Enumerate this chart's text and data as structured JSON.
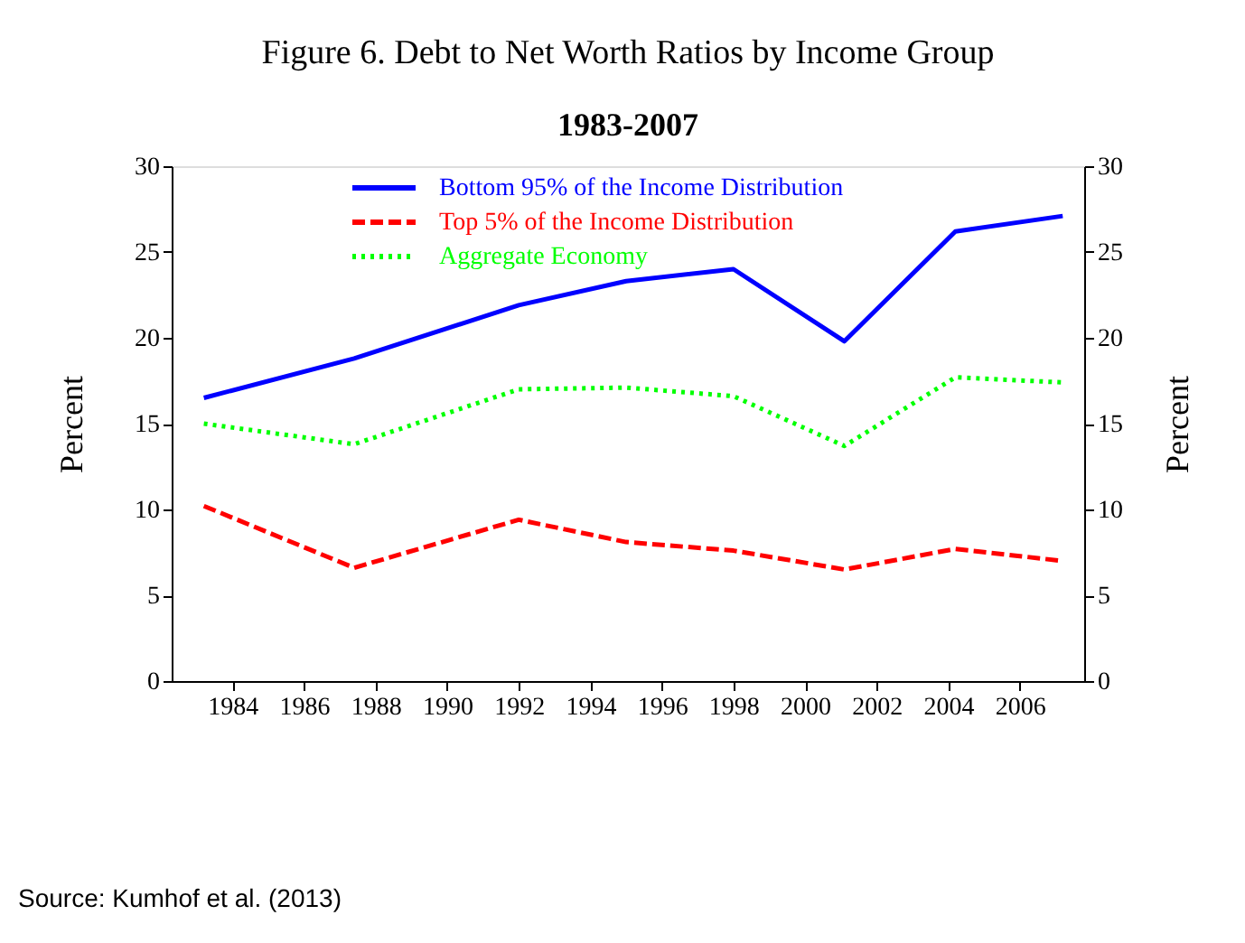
{
  "chart_data": {
    "type": "line",
    "title": "Figure 6. Debt to Net Worth Ratios by Income Group",
    "subtitle": "1983-2007",
    "ylabel": "Percent",
    "y2label": "Percent",
    "x": [
      1983.2,
      1987.4,
      1992,
      1995,
      1998,
      2001.1,
      2004.2,
      2007.2
    ],
    "series": [
      {
        "name": "Bottom 95% of the Income Distribution",
        "color": "#0000ff",
        "line_style": "solid",
        "values": [
          16.5,
          18.8,
          21.9,
          23.3,
          24.0,
          19.8,
          26.2,
          27.1
        ]
      },
      {
        "name": "Top 5% of the Income Distribution",
        "color": "#ff0000",
        "line_style": "dashed",
        "values": [
          10.2,
          6.6,
          9.4,
          8.1,
          7.6,
          6.5,
          7.7,
          7.0
        ]
      },
      {
        "name": "Aggregate Economy",
        "color": "#00ff00",
        "line_style": "dotted",
        "values": [
          15.0,
          13.8,
          17.0,
          17.1,
          16.6,
          13.7,
          17.7,
          17.4
        ]
      }
    ],
    "xlim": [
      1982.3,
      2007.8
    ],
    "xticks": [
      1984,
      1986,
      1988,
      1990,
      1992,
      1994,
      1996,
      1998,
      2000,
      2002,
      2004,
      2006
    ],
    "ylim": [
      0,
      30
    ],
    "yticks": [
      0,
      5,
      10,
      15,
      20,
      25,
      30
    ],
    "y2lim": [
      0,
      30
    ],
    "y2ticks": [
      0,
      5,
      10,
      15,
      20,
      25,
      30
    ],
    "grid": false,
    "legend": "top",
    "marker": "none",
    "annotations": [
      "Source: Kumhof et al. (2013)"
    ]
  }
}
